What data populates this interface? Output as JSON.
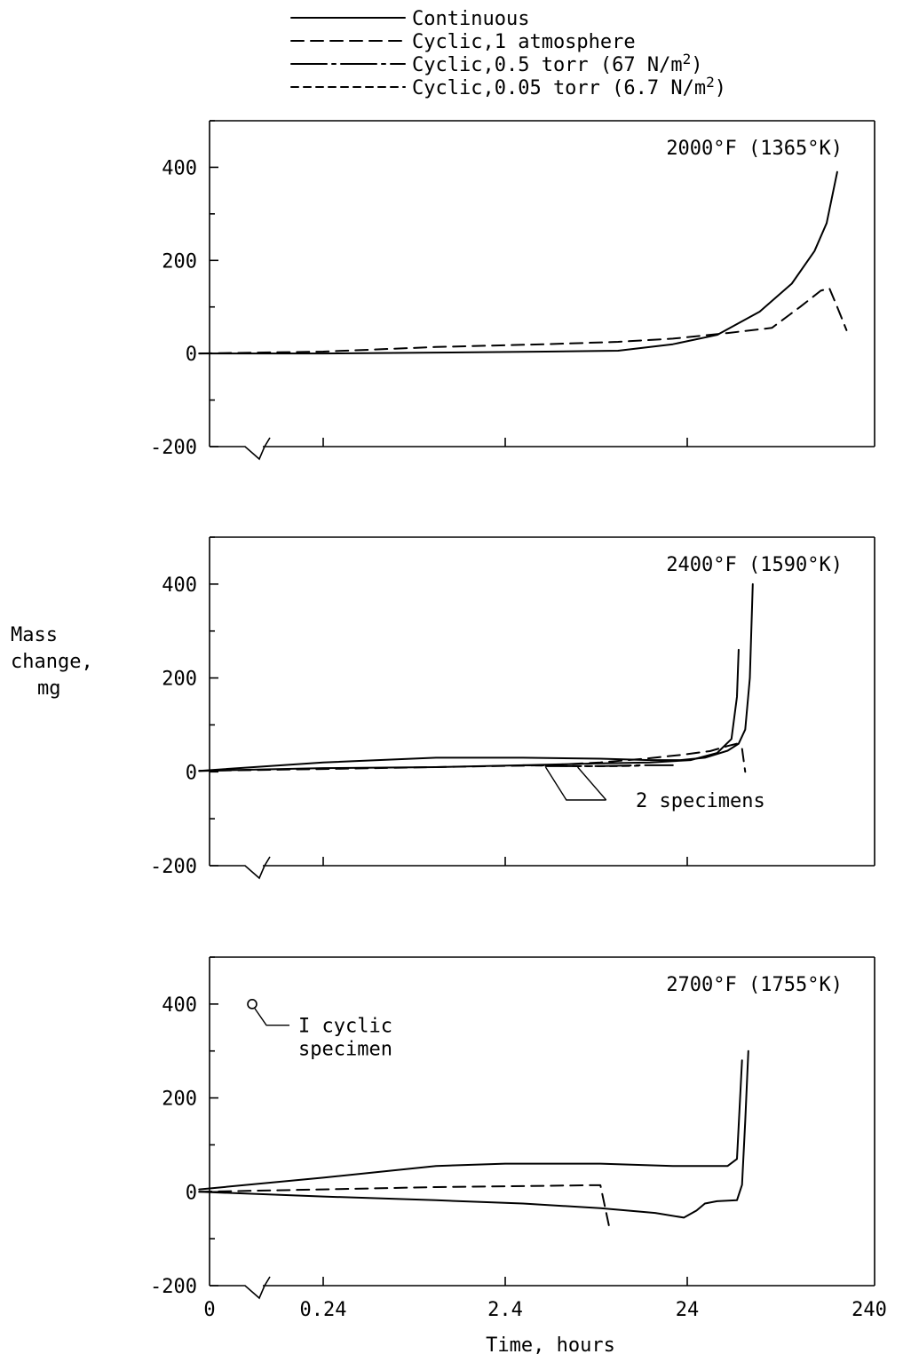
{
  "legend": [
    {
      "label": "Continuous",
      "dash": "solid"
    },
    {
      "label": "Cyclic,1 atmosphere",
      "dash": "dash"
    },
    {
      "label": "Cyclic,0.5 torr (67 N/m2)",
      "dash": "dashdot"
    },
    {
      "label": "Cyclic,0.05 torr (6.7 N/m2)",
      "dash": "shortdash"
    }
  ],
  "ylabel": [
    "Mass",
    "change,",
    "mg"
  ],
  "xlabel": "Time, hours",
  "chart_data": [
    {
      "type": "line",
      "title": "2000°F (1365°K)",
      "xscale": "log",
      "xticks": [
        0,
        0.24,
        2.4,
        24,
        240
      ],
      "xtick_labels": [
        "0",
        "0.24",
        "2.4",
        "24",
        "240"
      ],
      "ylim": [
        -200,
        500
      ],
      "yticks": [
        -200,
        0,
        200,
        400
      ],
      "ytick_labels": [
        "-200",
        "0",
        "200",
        "400"
      ],
      "series": [
        {
          "style": "solid",
          "points": [
            [
              0.05,
              0
            ],
            [
              0.24,
              0
            ],
            [
              1,
              2
            ],
            [
              4,
              4
            ],
            [
              10,
              6
            ],
            [
              20,
              20
            ],
            [
              35,
              40
            ],
            [
              60,
              90
            ],
            [
              90,
              150
            ],
            [
              120,
              220
            ],
            [
              140,
              280
            ],
            [
              160,
              390
            ]
          ]
        },
        {
          "style": "dash",
          "points": [
            [
              0.05,
              0
            ],
            [
              0.24,
              4
            ],
            [
              1,
              14
            ],
            [
              4,
              20
            ],
            [
              10,
              25
            ],
            [
              20,
              32
            ],
            [
              40,
              44
            ],
            [
              70,
              55
            ],
            [
              100,
              100
            ],
            [
              130,
              135
            ],
            [
              145,
              140
            ],
            [
              160,
              100
            ],
            [
              180,
              50
            ]
          ]
        }
      ],
      "annotations": []
    },
    {
      "type": "line",
      "title": "2400°F (1590°K)",
      "xscale": "log",
      "xticks": [
        0,
        0.24,
        2.4,
        24,
        240
      ],
      "xtick_labels": [
        "0",
        "0.24",
        "2.4",
        "24",
        "240"
      ],
      "ylim": [
        -200,
        500
      ],
      "yticks": [
        -200,
        0,
        200,
        400
      ],
      "ytick_labels": [
        "-200",
        "0",
        "200",
        "400"
      ],
      "series": [
        {
          "style": "solid",
          "points": [
            [
              0.05,
              2
            ],
            [
              0.24,
              20
            ],
            [
              1,
              30
            ],
            [
              3,
              30
            ],
            [
              8,
              28
            ],
            [
              15,
              25
            ],
            [
              22,
              25
            ],
            [
              30,
              30
            ],
            [
              40,
              45
            ],
            [
              46,
              60
            ],
            [
              50,
              90
            ],
            [
              53,
              200
            ],
            [
              55,
              400
            ]
          ]
        },
        {
          "style": "solid",
          "points": [
            [
              0.05,
              2
            ],
            [
              0.24,
              8
            ],
            [
              1,
              10
            ],
            [
              3,
              14
            ],
            [
              8,
              18
            ],
            [
              15,
              20
            ],
            [
              25,
              25
            ],
            [
              35,
              40
            ],
            [
              42,
              70
            ],
            [
              45,
              160
            ],
            [
              46,
              260
            ]
          ]
        },
        {
          "style": "dash",
          "points": [
            [
              0.05,
              2
            ],
            [
              0.24,
              6
            ],
            [
              1,
              10
            ],
            [
              4,
              14
            ],
            [
              8,
              20
            ],
            [
              14,
              28
            ],
            [
              22,
              36
            ],
            [
              32,
              44
            ],
            [
              40,
              55
            ],
            [
              45,
              60
            ],
            [
              48,
              50
            ],
            [
              50,
              0
            ]
          ]
        },
        {
          "style": "dashdot",
          "points": [
            [
              4,
              12
            ],
            [
              8,
              12
            ],
            [
              13,
              14
            ],
            [
              20,
              14
            ]
          ]
        },
        {
          "style": "shortdash",
          "points": [
            [
              3,
              14
            ],
            [
              6,
              12
            ],
            [
              10,
              12
            ],
            [
              13,
              13
            ]
          ]
        }
      ],
      "annotations": [
        {
          "text": "2 specimens"
        }
      ]
    },
    {
      "type": "line",
      "title": "2700°F (1755°K)",
      "xscale": "log",
      "xticks": [
        0,
        0.24,
        2.4,
        24,
        240
      ],
      "xtick_labels": [
        "0",
        "0.24",
        "2.4",
        "24",
        "240"
      ],
      "ylim": [
        -200,
        500
      ],
      "yticks": [
        -200,
        0,
        200,
        400
      ],
      "ytick_labels": [
        "-200",
        "0",
        "200",
        "400"
      ],
      "series": [
        {
          "style": "solid",
          "points": [
            [
              0.05,
              5
            ],
            [
              0.24,
              30
            ],
            [
              1,
              55
            ],
            [
              2.4,
              60
            ],
            [
              8,
              60
            ],
            [
              20,
              55
            ],
            [
              40,
              55
            ],
            [
              45,
              70
            ],
            [
              48,
              280
            ]
          ]
        },
        {
          "style": "solid",
          "points": [
            [
              0.05,
              0
            ],
            [
              0.24,
              -10
            ],
            [
              1,
              -18
            ],
            [
              3,
              -25
            ],
            [
              8,
              -35
            ],
            [
              16,
              -45
            ],
            [
              23,
              -55
            ],
            [
              27,
              -40
            ],
            [
              30,
              -25
            ],
            [
              35,
              -20
            ],
            [
              45,
              -18
            ],
            [
              48,
              15
            ],
            [
              50,
              150
            ],
            [
              52,
              300
            ]
          ]
        },
        {
          "style": "dash",
          "points": [
            [
              0.05,
              0
            ],
            [
              0.24,
              5
            ],
            [
              1,
              10
            ],
            [
              3,
              12
            ],
            [
              7,
              14
            ],
            [
              8,
              14
            ],
            [
              9,
              -80
            ]
          ]
        }
      ],
      "points": [
        {
          "x": 0.03,
          "y": 400,
          "marker": "open-circle"
        }
      ],
      "annotations": [
        {
          "text": "I cyclic"
        },
        {
          "text": "specimen"
        }
      ]
    }
  ]
}
